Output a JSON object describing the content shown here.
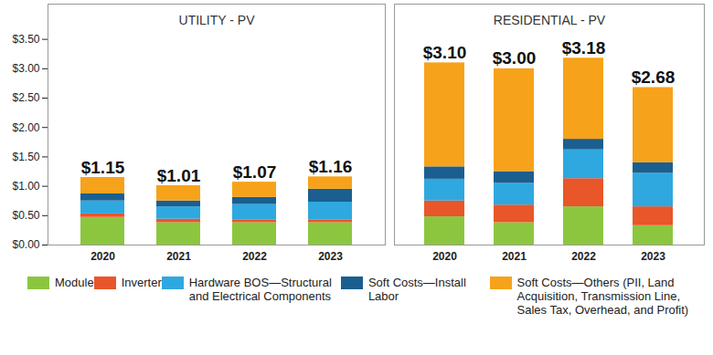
{
  "chart_data": [
    {
      "type": "bar",
      "title": "UTILITY - PV",
      "stacked": true,
      "legend": "bottom",
      "categories": [
        "2020",
        "2021",
        "2022",
        "2023"
      ],
      "series": [
        {
          "name": "Module",
          "color": "#8cc63f",
          "values": [
            0.47,
            0.38,
            0.38,
            0.38
          ]
        },
        {
          "name": "Inverter",
          "color": "#e8562a",
          "values": [
            0.06,
            0.06,
            0.05,
            0.05
          ]
        },
        {
          "name": "Hardware BOS—Structural and Electrical Components",
          "color": "#2fa8e0",
          "values": [
            0.22,
            0.21,
            0.26,
            0.3
          ]
        },
        {
          "name": "Soft Costs—Install Labor",
          "color": "#1a5f8f",
          "values": [
            0.12,
            0.1,
            0.12,
            0.22
          ]
        },
        {
          "name": "Soft Costs—Others (PII, Land Acquisition, Transmission Line, Sales Tax, Overhead, and Profit)",
          "color": "#f7a21b",
          "values": [
            0.28,
            0.26,
            0.26,
            0.21
          ]
        }
      ],
      "totals": [
        1.15,
        1.01,
        1.07,
        1.16
      ],
      "total_labels": [
        "$1.15",
        "$1.01",
        "$1.07",
        "$1.16"
      ],
      "ylim": [
        0,
        4.1
      ],
      "yticks": [
        {
          "value": 0,
          "label": "$0.00"
        },
        {
          "value": 0.5,
          "label": "$0.50"
        },
        {
          "value": 1,
          "label": "$1.00"
        },
        {
          "value": 1.5,
          "label": "$1.50"
        },
        {
          "value": 2,
          "label": "$2.00"
        },
        {
          "value": 2.5,
          "label": "$2.50"
        },
        {
          "value": 3,
          "label": "$3.00"
        },
        {
          "value": 3.5,
          "label": "$3.50"
        }
      ]
    },
    {
      "type": "bar",
      "title": "RESIDENTIAL - PV",
      "stacked": true,
      "tick_labels": "x",
      "categories": [
        "2020",
        "2021",
        "2022",
        "2023"
      ],
      "series": [
        {
          "name": "Module",
          "color": "#8cc63f",
          "values": [
            0.48,
            0.38,
            0.65,
            0.33
          ]
        },
        {
          "name": "Inverter",
          "color": "#e8562a",
          "values": [
            0.27,
            0.3,
            0.48,
            0.32
          ]
        },
        {
          "name": "Hardware BOS—Structural and Electrical Components",
          "color": "#2fa8e0",
          "values": [
            0.37,
            0.37,
            0.49,
            0.57
          ]
        },
        {
          "name": "Soft Costs—Install Labor",
          "color": "#1a5f8f",
          "values": [
            0.21,
            0.2,
            0.18,
            0.18
          ]
        },
        {
          "name": "Soft Costs—Others (PII, Land Acquisition, Transmission Line, Sales Tax, Overhead, and Profit)",
          "color": "#f7a21b",
          "values": [
            1.77,
            1.75,
            1.38,
            1.28
          ]
        }
      ],
      "totals": [
        3.1,
        3.0,
        3.18,
        2.68
      ],
      "total_labels": [
        "$3.10",
        "$3.00",
        "$3.18",
        "$2.68"
      ],
      "ylim": [
        0,
        4.1
      ]
    }
  ]
}
